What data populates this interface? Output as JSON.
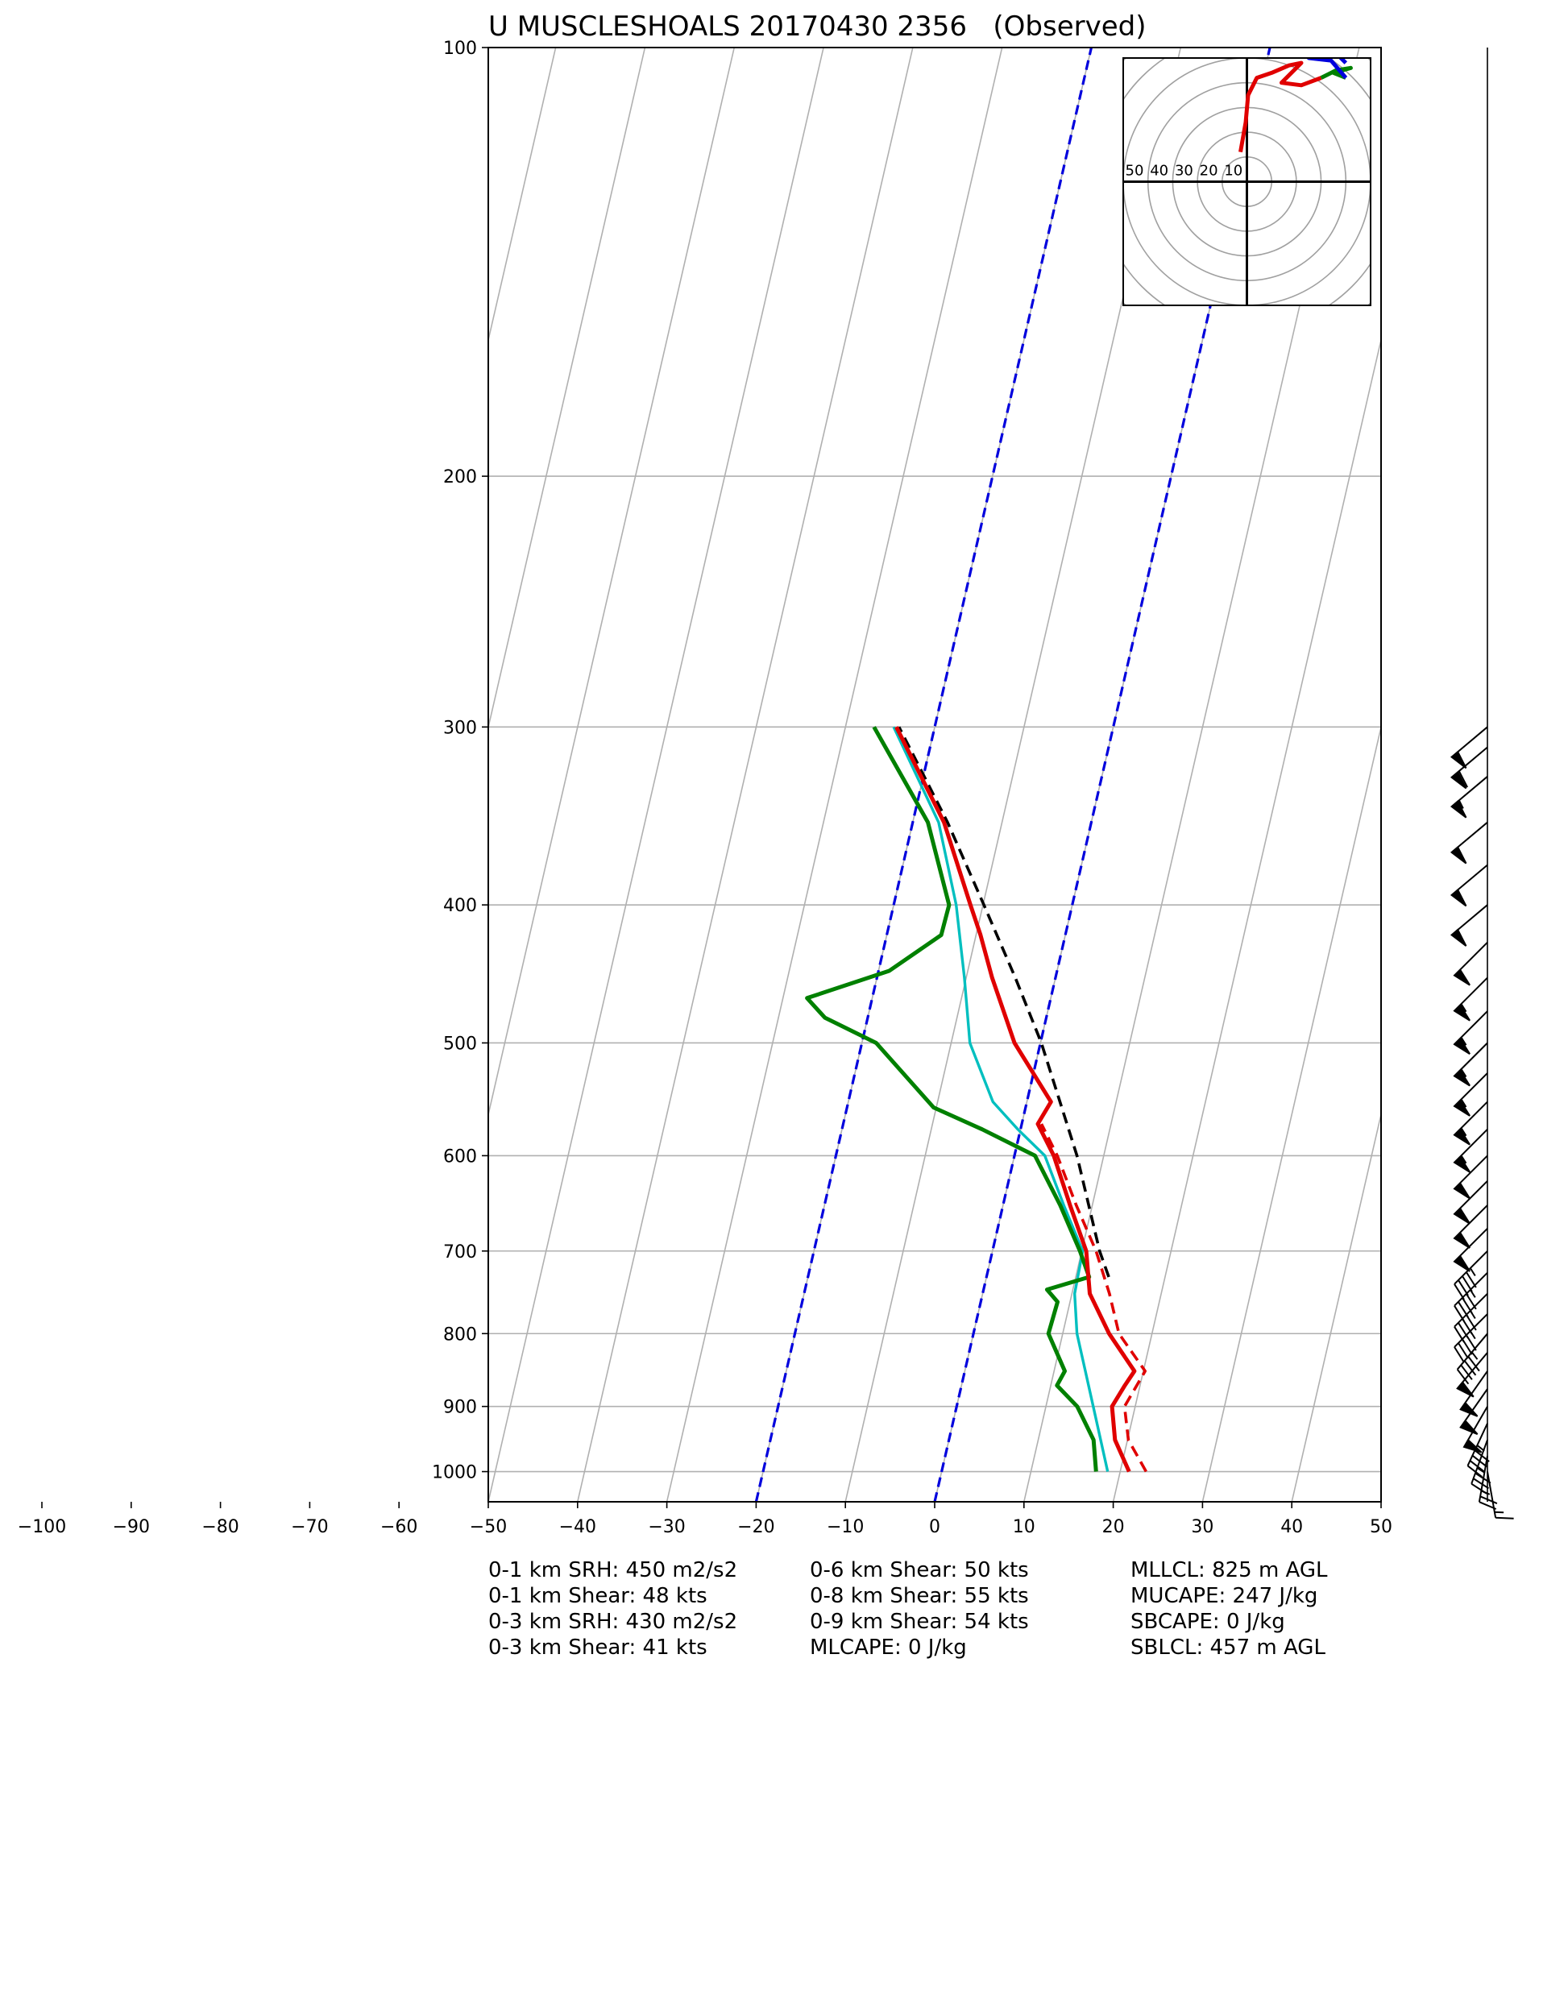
{
  "chart_data": {
    "type": "skewt",
    "title": "U MUSCLESHOALS 20170430 2356   (Observed)",
    "log_y": true,
    "grid": true,
    "xlim": [
      -50,
      50
    ],
    "ylim": [
      1050,
      100
    ],
    "xticks": [
      {
        "value": -100,
        "label": "−100"
      },
      {
        "value": -90,
        "label": "−90"
      },
      {
        "value": -80,
        "label": "−80"
      },
      {
        "value": -70,
        "label": "−70"
      },
      {
        "value": -60,
        "label": "−60"
      },
      {
        "value": -50,
        "label": "−50"
      },
      {
        "value": -40,
        "label": "−40"
      },
      {
        "value": -30,
        "label": "−30"
      },
      {
        "value": -20,
        "label": "−20"
      },
      {
        "value": -10,
        "label": "−10"
      },
      0,
      10,
      20,
      30,
      40,
      50
    ],
    "yticks": [
      100,
      200,
      300,
      400,
      500,
      600,
      700,
      800,
      900,
      1000
    ],
    "isotherms": {
      "color": "#0000dd",
      "values": [
        -20,
        0
      ]
    },
    "series": [
      {
        "color": "#e00000",
        "dashed": true,
        "pressure": [
          1000,
          950,
          900,
          850,
          800,
          750,
          700,
          650,
          600,
          570
        ],
        "values": [
          22.9,
          20.1,
          18.8,
          20.2,
          16.3,
          14.2,
          11.6,
          8.2,
          4.8,
          2.2
        ]
      },
      {
        "color": "#000000",
        "dashed": true,
        "pressure": [
          730,
          700,
          600,
          500,
          450,
          400,
          350,
          300
        ],
        "values": [
          13.7,
          12.0,
          7.0,
          0.1,
          -4.5,
          -9.9,
          -16.1,
          -24.0
        ]
      },
      {
        "color": "#00bfbf",
        "dashed": false,
        "pressure": [
          1000,
          900,
          850,
          800,
          750,
          700,
          650,
          600,
          575,
          550,
          500,
          450,
          400,
          350,
          300
        ],
        "values": [
          18.6,
          15.3,
          13.5,
          11.6,
          10.3,
          10.1,
          6.8,
          3.4,
          -0.3,
          -3.8,
          -7.9,
          -10.2,
          -13.0,
          -17.1,
          -24.6
        ]
      },
      {
        "color": "#008000",
        "dashed": false,
        "pressure": [
          1000,
          950,
          900,
          870,
          850,
          800,
          760,
          745,
          730,
          700,
          650,
          600,
          575,
          555,
          500,
          480,
          465,
          445,
          420,
          400,
          350,
          300
        ],
        "values": [
          17.3,
          16.2,
          13.5,
          10.7,
          11.2,
          8.4,
          8.6,
          7.1,
          11.5,
          9.8,
          6.4,
          2.3,
          -4.3,
          -10.3,
          -18.4,
          -24.8,
          -27.3,
          -18.8,
          -13.9,
          -13.8,
          -18.3,
          -26.8
        ]
      },
      {
        "color": "#e00000",
        "dashed": false,
        "pressure": [
          1000,
          950,
          900,
          870,
          850,
          800,
          750,
          700,
          650,
          600,
          570,
          550,
          500,
          450,
          420,
          400,
          350,
          300
        ],
        "values": [
          21.0,
          18.6,
          17.4,
          18.3,
          19.0,
          15.2,
          12.0,
          10.5,
          7.5,
          4.4,
          1.8,
          2.7,
          -2.9,
          -7.1,
          -9.5,
          -11.4,
          -16.5,
          -24.3
        ]
      }
    ],
    "winds": {
      "pressure": [
        1000,
        975,
        950,
        925,
        900,
        875,
        850,
        825,
        800,
        775,
        750,
        725,
        700,
        675,
        650,
        625,
        600,
        575,
        550,
        525,
        500,
        475,
        450,
        425,
        400,
        375,
        350,
        325,
        310,
        300
      ],
      "speed": [
        15,
        25,
        35,
        45,
        50,
        50,
        50,
        50,
        45,
        45,
        45,
        45,
        45,
        50,
        50,
        50,
        50,
        55,
        55,
        55,
        55,
        55,
        55,
        50,
        50,
        50,
        50,
        55,
        60,
        50
      ],
      "direction": [
        170,
        190,
        200,
        205,
        210,
        215,
        215,
        220,
        220,
        225,
        225,
        225,
        225,
        225,
        225,
        225,
        225,
        225,
        225,
        225,
        225,
        225,
        225,
        225,
        230,
        230,
        230,
        230,
        230,
        230
      ]
    },
    "hodograph": {
      "xlim": [
        -50,
        50
      ],
      "ylim": [
        -50,
        50
      ],
      "rings": [
        10,
        20,
        30,
        40,
        50,
        60,
        70
      ],
      "ring_labels": [
        50,
        40,
        30,
        20,
        10
      ],
      "series": [
        {
          "color": "#e00000",
          "u": [
            -2.6,
            -0.5,
            0.5,
            4,
            10,
            17,
            22,
            14,
            22,
            30
          ],
          "v": [
            12,
            24,
            35,
            42,
            44,
            47,
            48,
            40,
            39,
            42
          ]
        },
        {
          "color": "#008000",
          "u": [
            30,
            36,
            42,
            35,
            40
          ],
          "v": [
            42,
            45,
            46,
            44,
            42
          ]
        },
        {
          "color": "#0000dd",
          "u": [
            40,
            34,
            25,
            36,
            40
          ],
          "v": [
            42,
            49,
            50,
            52,
            48
          ]
        }
      ]
    }
  },
  "stats": [
    [
      "0-1 km SRH: 450 m2/s2",
      "0-1 km Shear: 48 kts",
      "0-3 km SRH: 430 m2/s2",
      "0-3 km Shear: 41 kts"
    ],
    [
      "0-6 km Shear: 50 kts",
      "0-8 km Shear: 55 kts",
      "0-9 km Shear: 54 kts",
      "MLCAPE: 0 J/kg"
    ],
    [
      "MLLCL: 825 m AGL",
      "MUCAPE: 247 J/kg",
      "SBCAPE: 0 J/kg",
      "SBLCL: 457 m AGL"
    ]
  ]
}
